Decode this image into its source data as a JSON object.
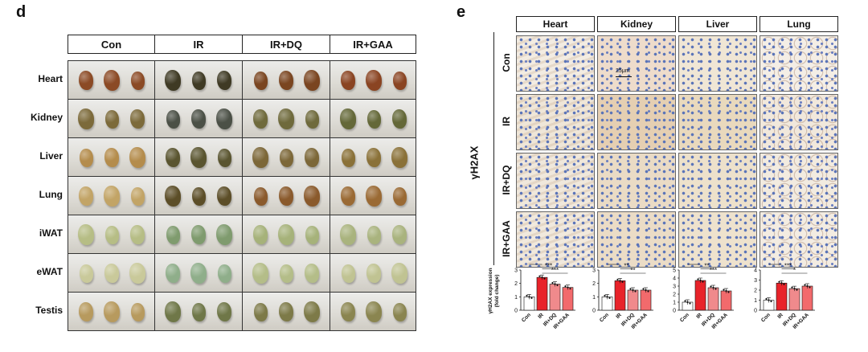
{
  "panel_d": {
    "letter": "d",
    "columns": [
      "Con",
      "IR",
      "IR+DQ",
      "IR+GAA"
    ],
    "rows": [
      {
        "label": "Heart",
        "colors": [
          "#8b4a25",
          "#3f3a24",
          "#7a4520",
          "#8a4422"
        ]
      },
      {
        "label": "Kidney",
        "colors": [
          "#7c6a3a",
          "#4b5046",
          "#6f6a3c",
          "#646838"
        ]
      },
      {
        "label": "Liver",
        "colors": [
          "#b48c4c",
          "#5a5530",
          "#7c6738",
          "#8a7138"
        ]
      },
      {
        "label": "Lung",
        "colors": [
          "#c2a466",
          "#5c4e28",
          "#8a5a2c",
          "#9a6a34"
        ]
      },
      {
        "label": "iWAT",
        "colors": [
          "#b6bd85",
          "#7f9b6e",
          "#a6b27a",
          "#a9b37e"
        ]
      },
      {
        "label": "eWAT",
        "colors": [
          "#c9c99a",
          "#8fae8a",
          "#b4bd88",
          "#c0c392"
        ]
      },
      {
        "label": "Testis",
        "colors": [
          "#b79a5e",
          "#6f7748",
          "#7d7a48",
          "#8a8550"
        ]
      }
    ]
  },
  "panel_e": {
    "letter": "e",
    "side_label": "γH2AX",
    "organs": [
      "Heart",
      "Kidney",
      "Liver",
      "Lung"
    ],
    "conditions": [
      "Con",
      "IR",
      "IR+DQ",
      "IR+GAA"
    ],
    "scale_bar": "25μm",
    "tints": [
      [
        "#f3ece2",
        "#eedccb",
        "#f0e6d5",
        "#f4eee6"
      ],
      [
        "#efe6d8",
        "#e5cfb2",
        "#e9d9bd",
        "#f1e8dc"
      ],
      [
        "#f0e8dc",
        "#eadbc5",
        "#ede1cb",
        "#f2ebe0"
      ],
      [
        "#f1e9dd",
        "#ebdcc6",
        "#eee2cd",
        "#f3ece2"
      ]
    ]
  },
  "chart_data": [
    {
      "type": "bar",
      "title": "Heart",
      "ylabel": "γH2AX expression (fold change)",
      "categories": [
        "Con",
        "IR",
        "IR+DQ",
        "IR+GAA"
      ],
      "values": [
        1.0,
        2.45,
        1.95,
        1.7
      ],
      "ylim": [
        0,
        3
      ],
      "yticks": [
        "0",
        "1",
        "2",
        "3"
      ],
      "significance": [
        [
          "Con",
          "IR",
          "***"
        ],
        [
          "IR",
          "IR+DQ",
          "***"
        ],
        [
          "IR",
          "IR+GAA",
          "***"
        ]
      ]
    },
    {
      "type": "bar",
      "title": "Kidney",
      "categories": [
        "Con",
        "IR",
        "IR+DQ",
        "IR+GAA"
      ],
      "values": [
        1.0,
        2.2,
        1.5,
        1.5
      ],
      "ylim": [
        0,
        3
      ],
      "yticks": [
        "0",
        "1",
        "2",
        "3"
      ],
      "significance": [
        [
          "Con",
          "IR",
          "***"
        ],
        [
          "IR",
          "IR+DQ",
          "**"
        ],
        [
          "IR",
          "IR+GAA",
          "**"
        ]
      ]
    },
    {
      "type": "bar",
      "title": "Liver",
      "categories": [
        "Con",
        "IR",
        "IR+DQ",
        "IR+GAA"
      ],
      "values": [
        1.0,
        3.7,
        2.8,
        2.4
      ],
      "ylim": [
        0,
        5
      ],
      "yticks": [
        "0",
        "1",
        "2",
        "3",
        "4",
        "5"
      ],
      "significance": [
        [
          "Con",
          "IR",
          "***"
        ],
        [
          "IR",
          "IR+DQ",
          "**"
        ],
        [
          "IR",
          "IR+GAA",
          "***"
        ]
      ]
    },
    {
      "type": "bar",
      "title": "Lung",
      "categories": [
        "Con",
        "IR",
        "IR+DQ",
        "IR+GAA"
      ],
      "values": [
        1.0,
        2.7,
        2.15,
        2.4
      ],
      "ylim": [
        0,
        4
      ],
      "yticks": [
        "0",
        "1",
        "2",
        "3",
        "4"
      ],
      "significance": [
        [
          "Con",
          "IR",
          "***"
        ],
        [
          "IR",
          "IR+DQ",
          "***"
        ],
        [
          "IR",
          "IR+GAA",
          "*"
        ]
      ]
    }
  ],
  "colors": {
    "con": "#ffffff",
    "ir": "#e8232a",
    "dq": "#f08a8c",
    "gaa": "#f26a6c"
  }
}
